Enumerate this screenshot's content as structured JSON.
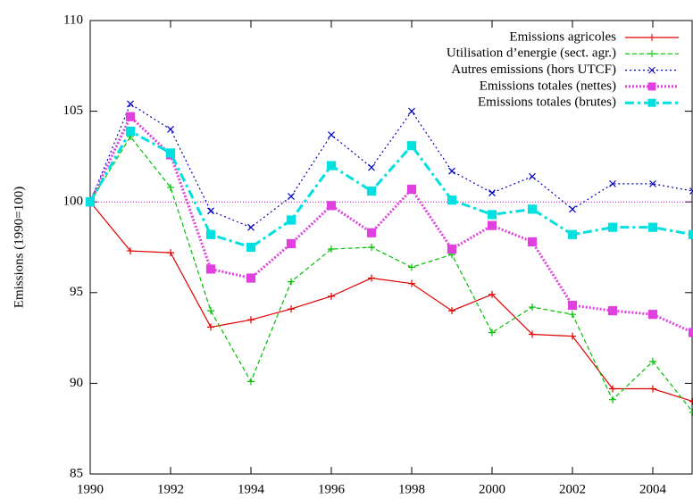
{
  "chart_data": {
    "type": "line",
    "ylabel": "Emissions (1990=100)",
    "x": [
      1990,
      1991,
      1992,
      1993,
      1994,
      1995,
      1996,
      1997,
      1998,
      1999,
      2000,
      2001,
      2002,
      2003,
      2004,
      2005
    ],
    "xlim": [
      1990,
      2005
    ],
    "xticks": [
      1990,
      1992,
      1994,
      1996,
      1998,
      2000,
      2002,
      2004
    ],
    "ylim": [
      85,
      110
    ],
    "yticks": [
      85,
      90,
      95,
      100,
      105,
      110
    ],
    "reference_line": 100,
    "reference_color": "#e000e0",
    "legend": "upper right",
    "series": [
      {
        "name": "Emissions agricoles",
        "color": "#e00000",
        "style": "solid",
        "marker": "plus",
        "values": [
          100,
          97.3,
          97.2,
          93.1,
          93.5,
          94.1,
          94.8,
          95.8,
          95.5,
          94.0,
          94.9,
          92.7,
          92.6,
          89.7,
          89.7,
          89.0
        ]
      },
      {
        "name": "Utilisation d’energie (sect. agr.)",
        "color": "#00c000",
        "style": "dashed",
        "marker": "plus",
        "values": [
          100,
          103.6,
          100.8,
          94.0,
          90.1,
          95.6,
          97.4,
          97.5,
          96.4,
          97.1,
          92.8,
          94.2,
          93.8,
          89.1,
          91.2,
          88.4
        ]
      },
      {
        "name": "Autres emissions (hors UTCF)",
        "color": "#0000c0",
        "style": "dotted",
        "marker": "cross",
        "values": [
          100,
          105.4,
          104.0,
          99.5,
          98.6,
          100.3,
          103.7,
          101.9,
          105.0,
          101.7,
          100.5,
          101.4,
          99.6,
          101.0,
          101.0,
          100.6
        ]
      },
      {
        "name": "Emissions totales (nettes)",
        "color": "#e040e0",
        "style": "thickdot",
        "marker": "square",
        "values": [
          100,
          104.7,
          102.6,
          96.3,
          95.8,
          97.7,
          99.8,
          98.3,
          100.7,
          97.4,
          98.7,
          97.8,
          94.3,
          94.0,
          93.8,
          92.8
        ]
      },
      {
        "name": "Emissions totales (brutes)",
        "color": "#00e0e0",
        "style": "dashdot",
        "marker": "square",
        "values": [
          100,
          103.9,
          102.7,
          98.2,
          97.5,
          99.0,
          102.0,
          100.6,
          103.1,
          100.1,
          99.3,
          99.6,
          98.2,
          98.6,
          98.6,
          98.2
        ]
      }
    ]
  }
}
